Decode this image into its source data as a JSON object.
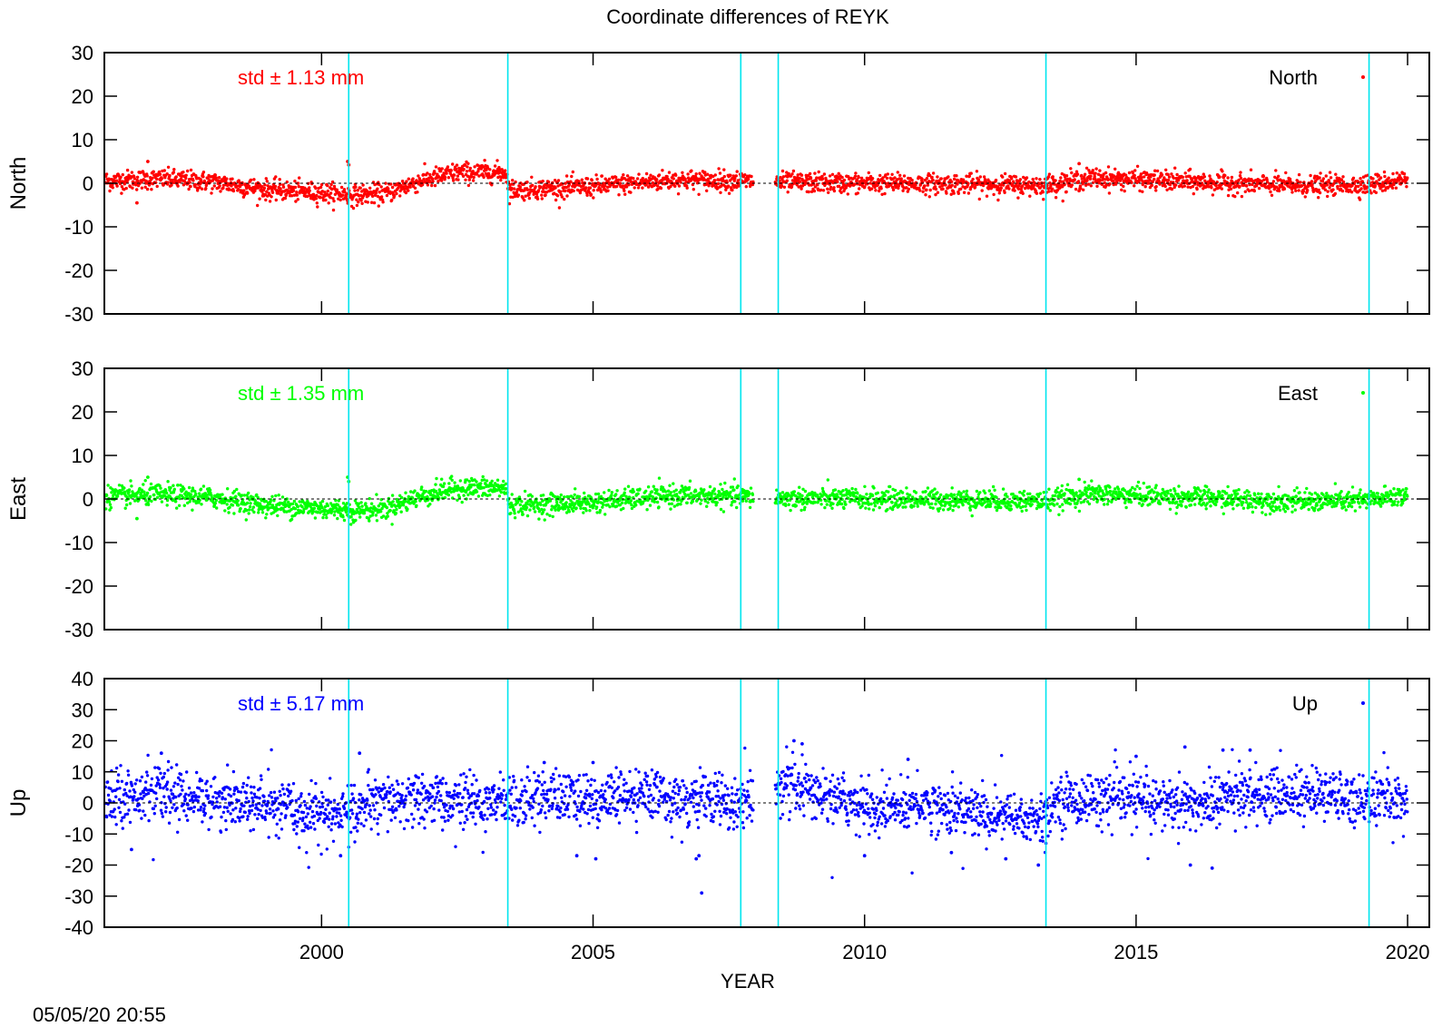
{
  "timestamp": "05/05/20 20:55",
  "chart_data": {
    "type": "scatter",
    "title": "Coordinate differences of REYK",
    "xlabel": "YEAR",
    "xlim": [
      1996.0,
      2020.4
    ],
    "xticks": [
      2000,
      2005,
      2010,
      2015,
      2020
    ],
    "event_lines": [
      2000.5,
      2003.43,
      2007.72,
      2008.41,
      2013.34,
      2019.29
    ],
    "zero_line": "dashed",
    "grid": false,
    "legend_placement": "top-right",
    "panels": [
      {
        "name": "North",
        "ylabel": "North",
        "ylim": [
          -30,
          30
        ],
        "yticks": [
          30,
          20,
          10,
          0,
          -10,
          -20,
          -30
        ],
        "std_label": "std ± 1.13 mm",
        "color": "#ff0000",
        "trend": [
          {
            "x": 1996.0,
            "y": 0.5
          },
          {
            "x": 1997.0,
            "y": 1.0
          },
          {
            "x": 1998.0,
            "y": 0.3
          },
          {
            "x": 1999.0,
            "y": -1.5
          },
          {
            "x": 2000.45,
            "y": -2.5
          },
          {
            "x": 2000.55,
            "y": -2.8
          },
          {
            "x": 2001.2,
            "y": -2.2
          },
          {
            "x": 2001.8,
            "y": 0.5
          },
          {
            "x": 2002.5,
            "y": 2.5
          },
          {
            "x": 2003.4,
            "y": 2.5
          },
          {
            "x": 2003.45,
            "y": -1.5
          },
          {
            "x": 2005.0,
            "y": -0.8
          },
          {
            "x": 2006.5,
            "y": 0.8
          },
          {
            "x": 2007.7,
            "y": 0.6
          },
          {
            "x": 2008.2,
            "y": 0.2
          },
          {
            "x": 2010.0,
            "y": 0.0
          },
          {
            "x": 2012.0,
            "y": -0.2
          },
          {
            "x": 2013.3,
            "y": -0.5
          },
          {
            "x": 2014.2,
            "y": 1.2
          },
          {
            "x": 2016.0,
            "y": 0.3
          },
          {
            "x": 2018.0,
            "y": -0.6
          },
          {
            "x": 2019.3,
            "y": -0.3
          },
          {
            "x": 2020.0,
            "y": 1.0
          }
        ],
        "noise": 1.13,
        "outliers": [
          {
            "x": 2000.48,
            "y": 5.0
          },
          {
            "x": 2000.5,
            "y": 4.2
          },
          {
            "x": 1996.8,
            "y": 5.0
          },
          {
            "x": 1996.6,
            "y": -4.5
          },
          {
            "x": 2013.95,
            "y": 4.5
          }
        ]
      },
      {
        "name": "East",
        "ylabel": "East",
        "ylim": [
          -30,
          30
        ],
        "yticks": [
          30,
          20,
          10,
          0,
          -10,
          -20,
          -30
        ],
        "std_label": "std ± 1.35 mm",
        "color": "#00ff00",
        "trend": [
          {
            "x": 1996.0,
            "y": 0.5
          },
          {
            "x": 1997.0,
            "y": 1.0
          },
          {
            "x": 1998.0,
            "y": 0.3
          },
          {
            "x": 1999.0,
            "y": -1.5
          },
          {
            "x": 2000.45,
            "y": -2.5
          },
          {
            "x": 2000.55,
            "y": -2.8
          },
          {
            "x": 2001.2,
            "y": -2.2
          },
          {
            "x": 2001.8,
            "y": 0.5
          },
          {
            "x": 2002.5,
            "y": 2.5
          },
          {
            "x": 2003.4,
            "y": 2.5
          },
          {
            "x": 2003.45,
            "y": -1.5
          },
          {
            "x": 2005.0,
            "y": -0.8
          },
          {
            "x": 2006.5,
            "y": 0.8
          },
          {
            "x": 2007.7,
            "y": 0.6
          },
          {
            "x": 2008.2,
            "y": 0.2
          },
          {
            "x": 2010.0,
            "y": 0.0
          },
          {
            "x": 2012.0,
            "y": -0.2
          },
          {
            "x": 2013.3,
            "y": -0.5
          },
          {
            "x": 2014.2,
            "y": 1.2
          },
          {
            "x": 2016.0,
            "y": 0.3
          },
          {
            "x": 2018.0,
            "y": -0.6
          },
          {
            "x": 2019.3,
            "y": -0.3
          },
          {
            "x": 2020.0,
            "y": 1.0
          }
        ],
        "noise": 1.2,
        "outliers": [
          {
            "x": 2000.48,
            "y": 5.0
          },
          {
            "x": 2000.5,
            "y": 4.0
          },
          {
            "x": 1996.8,
            "y": 5.0
          },
          {
            "x": 1996.6,
            "y": -4.5
          },
          {
            "x": 2013.95,
            "y": 4.5
          }
        ]
      },
      {
        "name": "Up",
        "ylabel": "Up",
        "ylim": [
          -40,
          40
        ],
        "yticks": [
          40,
          30,
          20,
          10,
          0,
          -10,
          -20,
          -30,
          -40
        ],
        "std_label": "std ± 5.17 mm",
        "color": "#0000ff",
        "trend": [
          {
            "x": 1996.0,
            "y": 2.0
          },
          {
            "x": 1997.0,
            "y": 3.0
          },
          {
            "x": 1998.0,
            "y": 1.0
          },
          {
            "x": 1999.0,
            "y": -1.0
          },
          {
            "x": 2000.3,
            "y": -4.0
          },
          {
            "x": 2001.0,
            "y": 0.0
          },
          {
            "x": 2002.0,
            "y": 1.0
          },
          {
            "x": 2003.0,
            "y": 0.0
          },
          {
            "x": 2004.0,
            "y": 2.0
          },
          {
            "x": 2005.0,
            "y": 1.0
          },
          {
            "x": 2006.0,
            "y": 2.0
          },
          {
            "x": 2007.0,
            "y": 1.0
          },
          {
            "x": 2007.7,
            "y": 0.0
          },
          {
            "x": 2008.4,
            "y": 5.0
          },
          {
            "x": 2009.5,
            "y": 2.0
          },
          {
            "x": 2010.3,
            "y": -3.0
          },
          {
            "x": 2011.0,
            "y": 0.0
          },
          {
            "x": 2012.3,
            "y": -4.0
          },
          {
            "x": 2013.3,
            "y": -6.0
          },
          {
            "x": 2013.5,
            "y": 1.0
          },
          {
            "x": 2015.0,
            "y": 1.0
          },
          {
            "x": 2016.0,
            "y": -1.0
          },
          {
            "x": 2017.0,
            "y": 3.0
          },
          {
            "x": 2018.0,
            "y": 3.0
          },
          {
            "x": 2019.3,
            "y": 1.0
          },
          {
            "x": 2020.0,
            "y": 1.0
          }
        ],
        "noise": 4.2,
        "outliers": [
          {
            "x": 2007.0,
            "y": -29.0
          },
          {
            "x": 2006.9,
            "y": -18.0
          },
          {
            "x": 2006.95,
            "y": -17.0
          },
          {
            "x": 2000.35,
            "y": -17.0
          },
          {
            "x": 2000.7,
            "y": 16.0
          },
          {
            "x": 1997.05,
            "y": 16.0
          },
          {
            "x": 1996.5,
            "y": -15.0
          },
          {
            "x": 2008.7,
            "y": 20.0
          },
          {
            "x": 2008.85,
            "y": 19.0
          },
          {
            "x": 2010.0,
            "y": -17.0
          },
          {
            "x": 2011.6,
            "y": -16.0
          },
          {
            "x": 2012.6,
            "y": -18.0
          },
          {
            "x": 2013.2,
            "y": -20.0
          },
          {
            "x": 2015.9,
            "y": 18.0
          },
          {
            "x": 2016.0,
            "y": -20.0
          },
          {
            "x": 2016.4,
            "y": -21.0
          },
          {
            "x": 2016.6,
            "y": 17.0
          },
          {
            "x": 2015.0,
            "y": 15.0
          },
          {
            "x": 2004.1,
            "y": 13.0
          },
          {
            "x": 2005.0,
            "y": 13.0
          },
          {
            "x": 2005.05,
            "y": -18.0
          },
          {
            "x": 2004.7,
            "y": -17.0
          },
          {
            "x": 2010.8,
            "y": 14.0
          },
          {
            "x": 2017.1,
            "y": 17.0
          }
        ]
      }
    ]
  }
}
